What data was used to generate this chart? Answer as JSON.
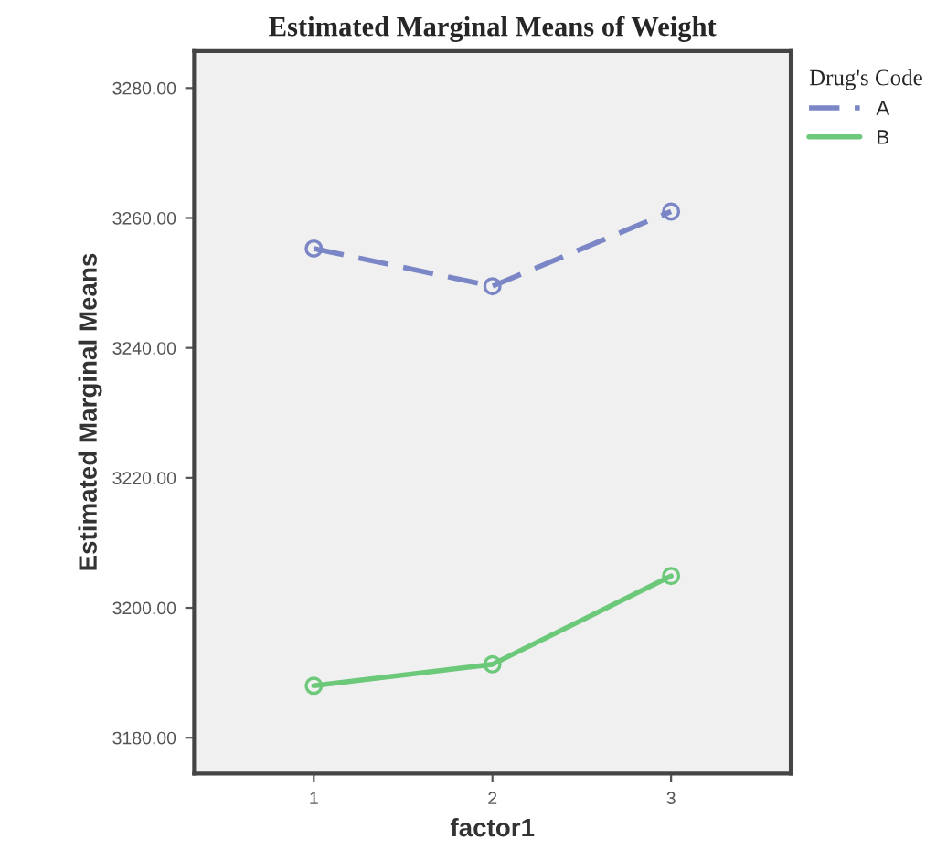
{
  "chart_data": {
    "type": "line",
    "title": "Estimated Marginal Means of Weight",
    "xlabel": "factor1",
    "ylabel": "Estimated Marginal Means",
    "legend_title": "Drug's Code",
    "categories": [
      "1",
      "2",
      "3"
    ],
    "series": [
      {
        "name": "A",
        "color": "#7b86c6",
        "values": [
          3255.3,
          3249.5,
          3261.0
        ],
        "line_style": "dashed"
      },
      {
        "name": "B",
        "color": "#6cc97a",
        "values": [
          3188.0,
          3191.3,
          3204.9
        ],
        "line_style": "solid"
      }
    ],
    "ylim": [
      3174.5,
      3285.7
    ],
    "yticks": [
      {
        "value": 3180,
        "label": "3180.00"
      },
      {
        "value": 3200,
        "label": "3200.00"
      },
      {
        "value": 3220,
        "label": "3220.00"
      },
      {
        "value": 3240,
        "label": "3240.00"
      },
      {
        "value": 3260,
        "label": "3260.00"
      },
      {
        "value": 3280,
        "label": "3280.00"
      }
    ],
    "marker": "circle",
    "grid": false,
    "legend": "top right"
  }
}
